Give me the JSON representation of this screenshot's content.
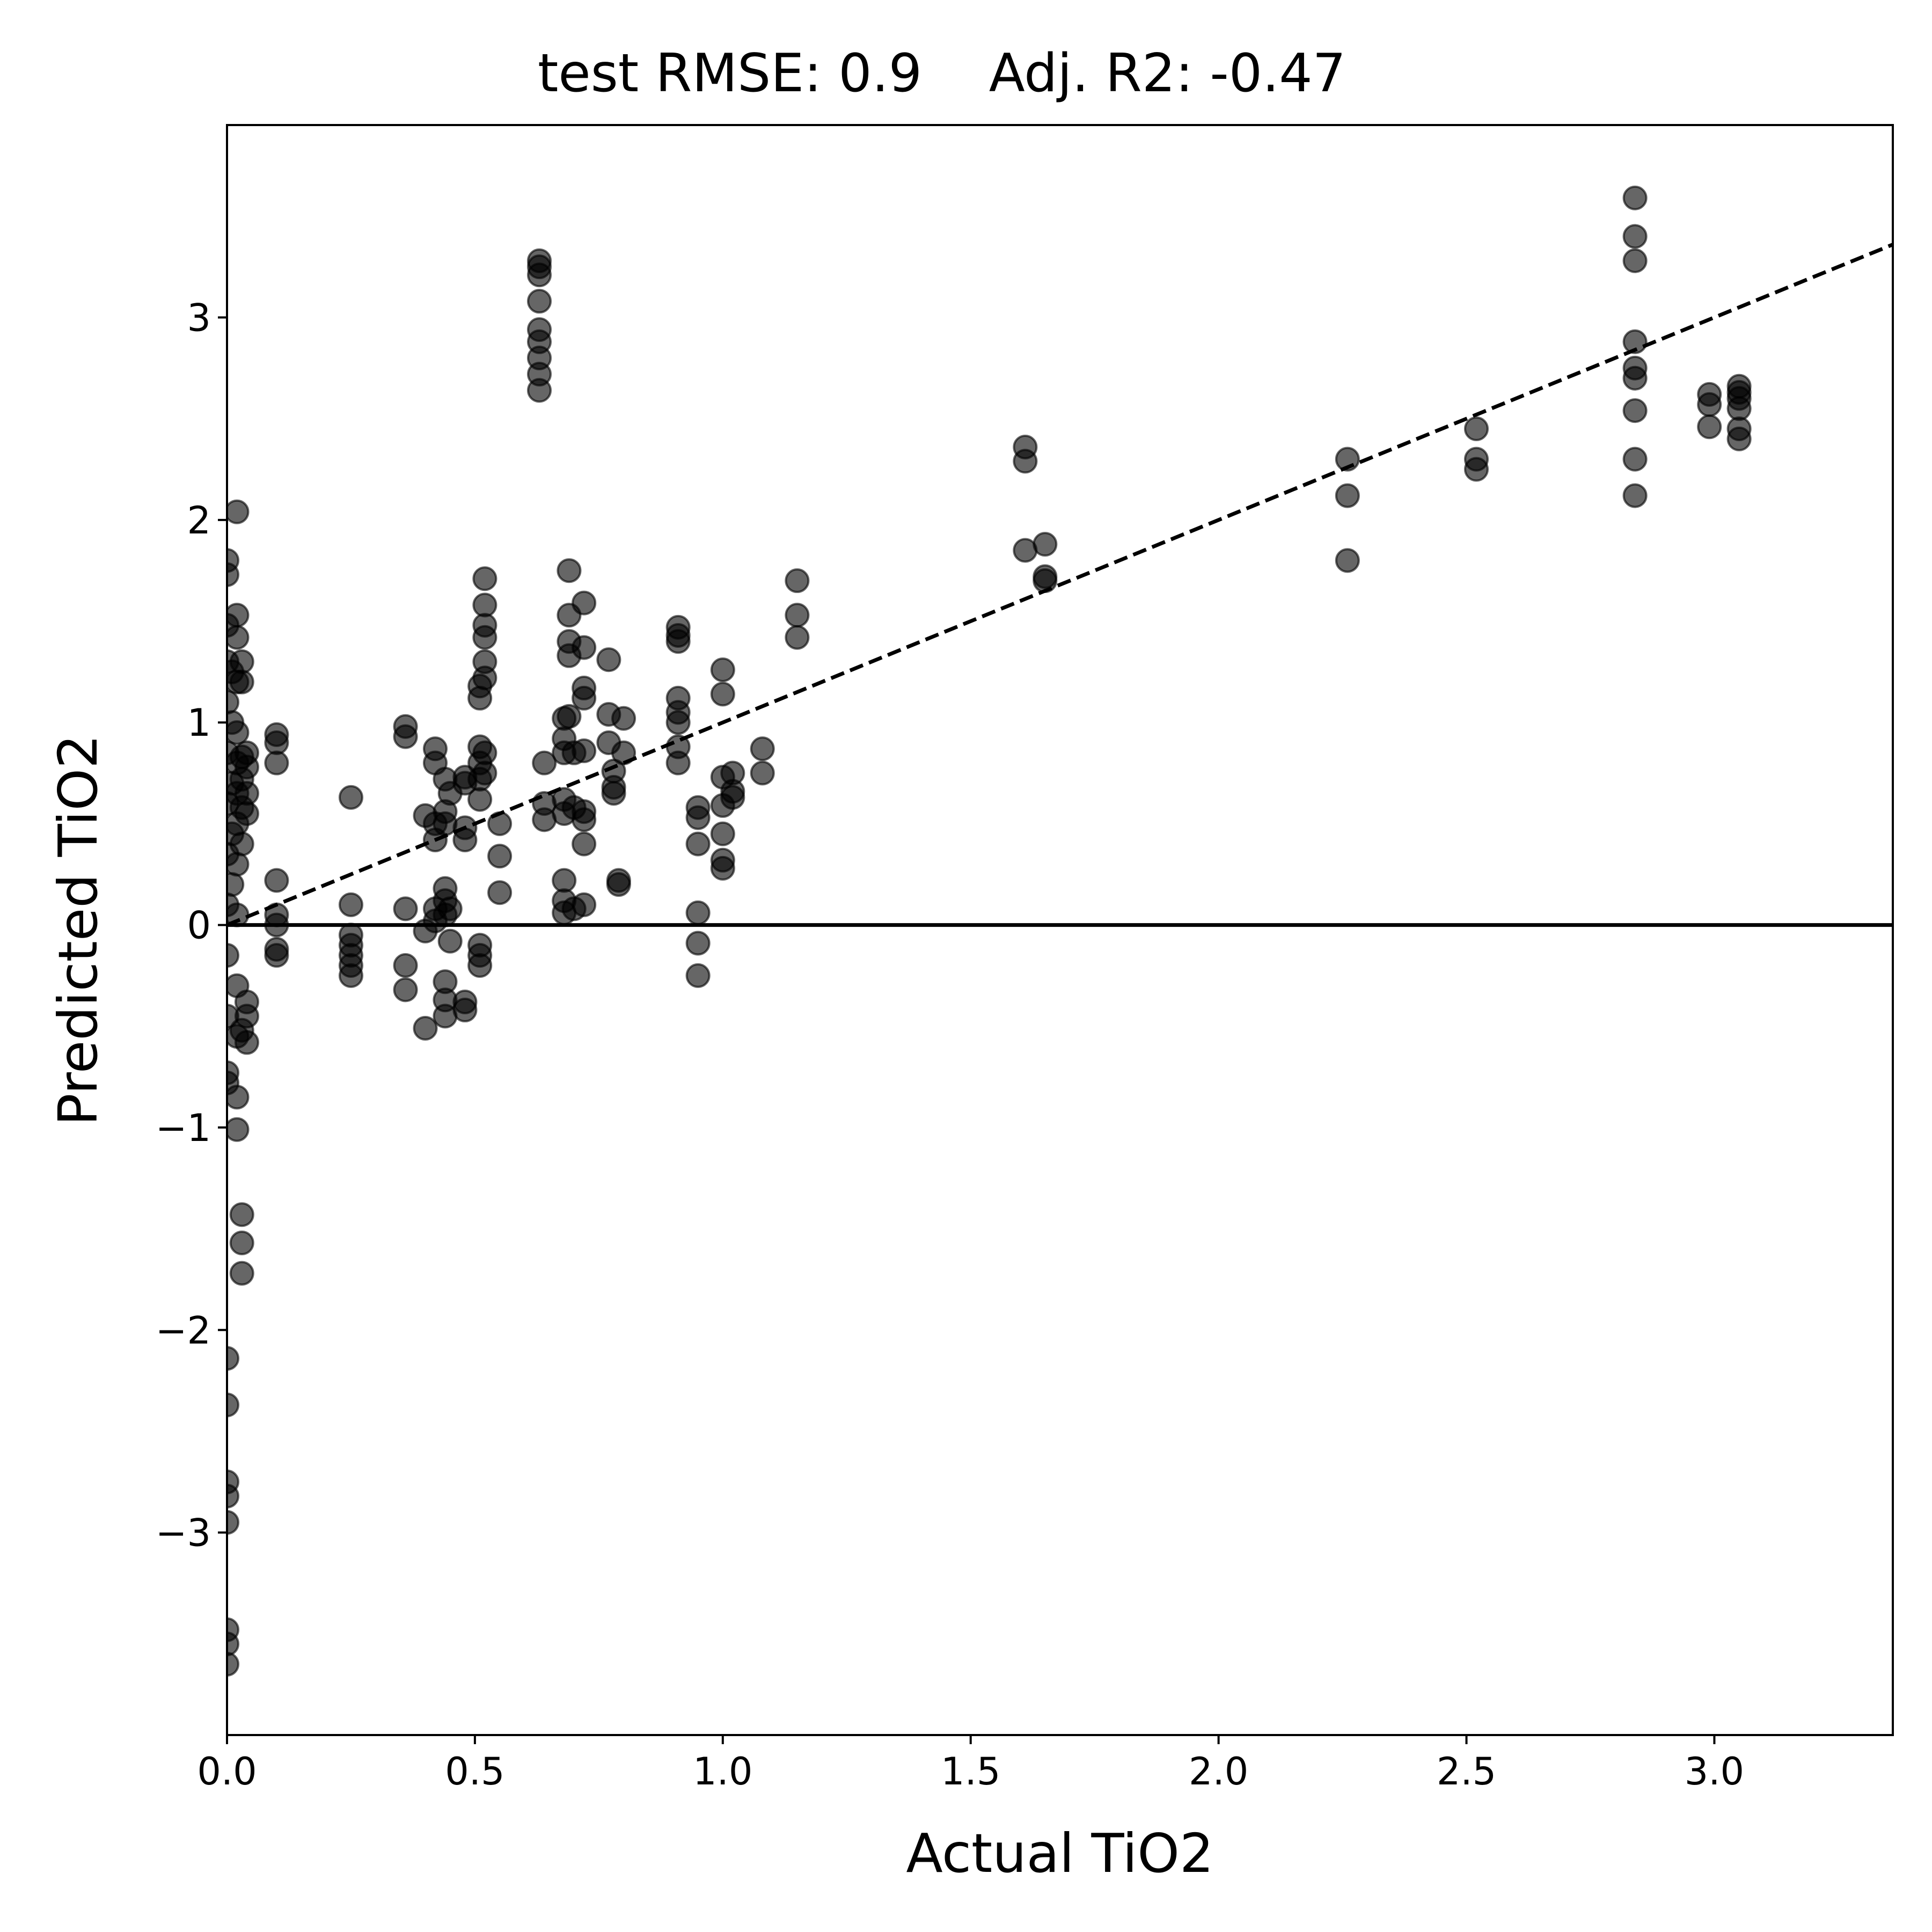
{
  "chart_data": {
    "type": "scatter",
    "title": "test RMSE: 0.9    Adj. R2: -0.47",
    "xlabel": "Actual TiO2",
    "ylabel": "Predicted TiO2",
    "xlim": [
      0.0,
      3.36
    ],
    "ylim": [
      -4.0,
      3.95
    ],
    "x_ticks": [
      0.0,
      0.5,
      1.0,
      1.5,
      2.0,
      2.5,
      3.0
    ],
    "x_tick_labels": [
      "0.0",
      "0.5",
      "1.0",
      "1.5",
      "2.0",
      "2.5",
      "3.0"
    ],
    "y_ticks": [
      -3,
      -2,
      -1,
      0,
      1,
      2,
      3
    ],
    "y_tick_labels": [
      "−3",
      "−2",
      "−1",
      "0",
      "1",
      "2",
      "3"
    ],
    "grid": false,
    "reference_lines": [
      {
        "kind": "identity",
        "style": "dashed",
        "color": "#000000"
      },
      {
        "kind": "horizontal",
        "y": 0,
        "style": "solid",
        "color": "#000000"
      }
    ],
    "marker_color": "#000000",
    "marker_alpha": 0.6,
    "points": [
      [
        0.0,
        -3.65
      ],
      [
        0.0,
        -3.55
      ],
      [
        0.0,
        -3.48
      ],
      [
        0.0,
        -2.95
      ],
      [
        0.0,
        -2.82
      ],
      [
        0.0,
        -2.75
      ],
      [
        0.0,
        -2.37
      ],
      [
        0.0,
        -2.14
      ],
      [
        0.0,
        -0.78
      ],
      [
        0.0,
        -0.73
      ],
      [
        0.0,
        -0.45
      ],
      [
        0.0,
        -0.15
      ],
      [
        0.0,
        0.1
      ],
      [
        0.0,
        0.35
      ],
      [
        0.0,
        0.6
      ],
      [
        0.0,
        0.85
      ],
      [
        0.0,
        1.1
      ],
      [
        0.0,
        1.3
      ],
      [
        0.0,
        1.48
      ],
      [
        0.0,
        1.73
      ],
      [
        0.0,
        1.8
      ],
      [
        0.01,
        0.2
      ],
      [
        0.01,
        0.45
      ],
      [
        0.01,
        0.7
      ],
      [
        0.01,
        1.0
      ],
      [
        0.01,
        1.25
      ],
      [
        0.02,
        -1.01
      ],
      [
        0.02,
        -0.85
      ],
      [
        0.02,
        -0.55
      ],
      [
        0.02,
        -0.3
      ],
      [
        0.02,
        0.05
      ],
      [
        0.02,
        0.3
      ],
      [
        0.02,
        0.5
      ],
      [
        0.02,
        0.65
      ],
      [
        0.02,
        0.8
      ],
      [
        0.02,
        0.95
      ],
      [
        0.02,
        1.2
      ],
      [
        0.02,
        1.42
      ],
      [
        0.02,
        1.53
      ],
      [
        0.02,
        2.04
      ],
      [
        0.03,
        -1.72
      ],
      [
        0.03,
        -1.57
      ],
      [
        0.03,
        -1.43
      ],
      [
        0.03,
        -0.52
      ],
      [
        0.03,
        0.4
      ],
      [
        0.03,
        0.58
      ],
      [
        0.03,
        0.72
      ],
      [
        0.03,
        0.83
      ],
      [
        0.03,
        1.2
      ],
      [
        0.03,
        1.3
      ],
      [
        0.04,
        -0.58
      ],
      [
        0.04,
        -0.45
      ],
      [
        0.04,
        -0.38
      ],
      [
        0.04,
        0.55
      ],
      [
        0.04,
        0.65
      ],
      [
        0.04,
        0.78
      ],
      [
        0.04,
        0.85
      ],
      [
        0.1,
        -0.15
      ],
      [
        0.1,
        -0.12
      ],
      [
        0.1,
        0.0
      ],
      [
        0.1,
        0.05
      ],
      [
        0.1,
        0.22
      ],
      [
        0.1,
        0.8
      ],
      [
        0.1,
        0.9
      ],
      [
        0.1,
        0.94
      ],
      [
        0.25,
        -0.25
      ],
      [
        0.25,
        -0.2
      ],
      [
        0.25,
        -0.15
      ],
      [
        0.25,
        -0.1
      ],
      [
        0.25,
        -0.05
      ],
      [
        0.25,
        0.1
      ],
      [
        0.25,
        0.63
      ],
      [
        0.36,
        -0.32
      ],
      [
        0.36,
        -0.2
      ],
      [
        0.36,
        0.08
      ],
      [
        0.36,
        0.93
      ],
      [
        0.36,
        0.98
      ],
      [
        0.4,
        -0.51
      ],
      [
        0.4,
        -0.03
      ],
      [
        0.4,
        0.54
      ],
      [
        0.42,
        0.02
      ],
      [
        0.42,
        0.08
      ],
      [
        0.42,
        0.42
      ],
      [
        0.42,
        0.5
      ],
      [
        0.42,
        0.8
      ],
      [
        0.42,
        0.87
      ],
      [
        0.44,
        -0.45
      ],
      [
        0.44,
        -0.37
      ],
      [
        0.44,
        -0.28
      ],
      [
        0.44,
        0.05
      ],
      [
        0.44,
        0.12
      ],
      [
        0.44,
        0.18
      ],
      [
        0.44,
        0.5
      ],
      [
        0.44,
        0.56
      ],
      [
        0.44,
        0.72
      ],
      [
        0.45,
        -0.08
      ],
      [
        0.45,
        0.08
      ],
      [
        0.45,
        0.65
      ],
      [
        0.48,
        -0.42
      ],
      [
        0.48,
        -0.38
      ],
      [
        0.48,
        0.42
      ],
      [
        0.48,
        0.48
      ],
      [
        0.48,
        0.7
      ],
      [
        0.48,
        0.73
      ],
      [
        0.51,
        -0.2
      ],
      [
        0.51,
        -0.15
      ],
      [
        0.51,
        -0.1
      ],
      [
        0.51,
        0.62
      ],
      [
        0.51,
        0.72
      ],
      [
        0.51,
        0.8
      ],
      [
        0.51,
        0.88
      ],
      [
        0.51,
        1.12
      ],
      [
        0.51,
        1.18
      ],
      [
        0.52,
        0.75
      ],
      [
        0.52,
        0.85
      ],
      [
        0.52,
        1.22
      ],
      [
        0.52,
        1.3
      ],
      [
        0.52,
        1.42
      ],
      [
        0.52,
        1.48
      ],
      [
        0.52,
        1.58
      ],
      [
        0.52,
        1.71
      ],
      [
        0.55,
        0.16
      ],
      [
        0.55,
        0.34
      ],
      [
        0.55,
        0.5
      ],
      [
        0.63,
        2.64
      ],
      [
        0.63,
        2.72
      ],
      [
        0.63,
        2.8
      ],
      [
        0.63,
        2.88
      ],
      [
        0.63,
        2.94
      ],
      [
        0.63,
        3.08
      ],
      [
        0.63,
        3.21
      ],
      [
        0.63,
        3.25
      ],
      [
        0.63,
        3.28
      ],
      [
        0.64,
        0.52
      ],
      [
        0.64,
        0.6
      ],
      [
        0.64,
        0.8
      ],
      [
        0.68,
        0.06
      ],
      [
        0.68,
        0.12
      ],
      [
        0.68,
        0.22
      ],
      [
        0.68,
        0.55
      ],
      [
        0.68,
        0.62
      ],
      [
        0.68,
        0.85
      ],
      [
        0.68,
        0.92
      ],
      [
        0.68,
        1.02
      ],
      [
        0.69,
        1.03
      ],
      [
        0.69,
        1.33
      ],
      [
        0.69,
        1.4
      ],
      [
        0.69,
        1.53
      ],
      [
        0.69,
        1.75
      ],
      [
        0.7,
        0.08
      ],
      [
        0.7,
        0.58
      ],
      [
        0.7,
        0.85
      ],
      [
        0.72,
        0.1
      ],
      [
        0.72,
        0.4
      ],
      [
        0.72,
        0.52
      ],
      [
        0.72,
        0.56
      ],
      [
        0.72,
        0.86
      ],
      [
        0.72,
        1.12
      ],
      [
        0.72,
        1.17
      ],
      [
        0.72,
        1.37
      ],
      [
        0.72,
        1.59
      ],
      [
        0.77,
        0.9
      ],
      [
        0.77,
        1.04
      ],
      [
        0.77,
        1.31
      ],
      [
        0.78,
        0.65
      ],
      [
        0.78,
        0.68
      ],
      [
        0.78,
        0.76
      ],
      [
        0.79,
        0.2
      ],
      [
        0.79,
        0.22
      ],
      [
        0.8,
        0.85
      ],
      [
        0.8,
        1.02
      ],
      [
        0.91,
        0.8
      ],
      [
        0.91,
        0.88
      ],
      [
        0.91,
        1.0
      ],
      [
        0.91,
        1.05
      ],
      [
        0.91,
        1.12
      ],
      [
        0.91,
        1.4
      ],
      [
        0.91,
        1.43
      ],
      [
        0.91,
        1.47
      ],
      [
        0.95,
        -0.25
      ],
      [
        0.95,
        -0.09
      ],
      [
        0.95,
        0.06
      ],
      [
        0.95,
        0.4
      ],
      [
        0.95,
        0.53
      ],
      [
        0.95,
        0.58
      ],
      [
        1.0,
        0.28
      ],
      [
        1.0,
        0.32
      ],
      [
        1.0,
        0.45
      ],
      [
        1.0,
        0.59
      ],
      [
        1.0,
        0.73
      ],
      [
        1.0,
        1.14
      ],
      [
        1.0,
        1.26
      ],
      [
        1.02,
        0.63
      ],
      [
        1.02,
        0.66
      ],
      [
        1.02,
        0.75
      ],
      [
        1.08,
        0.75
      ],
      [
        1.08,
        0.87
      ],
      [
        1.15,
        1.42
      ],
      [
        1.15,
        1.53
      ],
      [
        1.15,
        1.7
      ],
      [
        1.61,
        1.85
      ],
      [
        1.61,
        2.29
      ],
      [
        1.61,
        2.36
      ],
      [
        1.65,
        1.7
      ],
      [
        1.65,
        1.72
      ],
      [
        1.65,
        1.88
      ],
      [
        2.26,
        1.8
      ],
      [
        2.26,
        2.12
      ],
      [
        2.26,
        2.3
      ],
      [
        2.52,
        2.25
      ],
      [
        2.52,
        2.3
      ],
      [
        2.52,
        2.45
      ],
      [
        2.84,
        2.12
      ],
      [
        2.84,
        2.3
      ],
      [
        2.84,
        2.54
      ],
      [
        2.84,
        2.7
      ],
      [
        2.84,
        2.75
      ],
      [
        2.84,
        2.88
      ],
      [
        2.84,
        3.28
      ],
      [
        2.84,
        3.4
      ],
      [
        2.84,
        3.59
      ],
      [
        2.99,
        2.46
      ],
      [
        2.99,
        2.57
      ],
      [
        2.99,
        2.62
      ],
      [
        3.05,
        2.4
      ],
      [
        3.05,
        2.45
      ],
      [
        3.05,
        2.55
      ],
      [
        3.05,
        2.6
      ],
      [
        3.05,
        2.63
      ],
      [
        3.05,
        2.66
      ]
    ]
  }
}
